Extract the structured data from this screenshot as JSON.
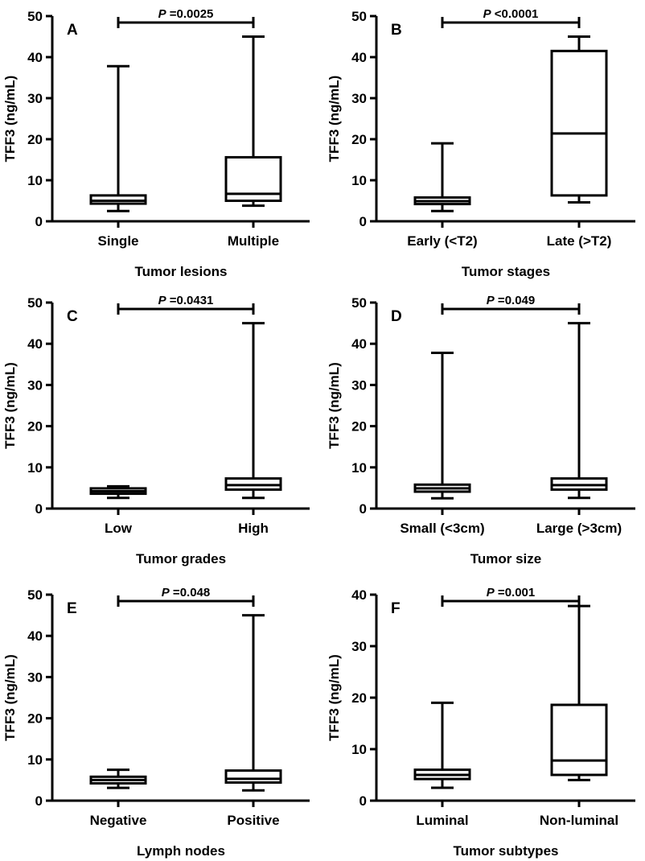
{
  "chart_data": [
    {
      "panel": "A",
      "type": "box",
      "ylabel": "TFF3 (ng/mL)",
      "xlabel": "Tumor lesions",
      "ylim": [
        0,
        50
      ],
      "yticks": [
        0,
        10,
        20,
        30,
        40,
        50
      ],
      "pvalue": "=0.0025",
      "categories": [
        "Single",
        "Multiple"
      ],
      "boxes": [
        {
          "min": 2.5,
          "q1": 4.3,
          "median": 5.0,
          "q3": 6.3,
          "max": 37.8
        },
        {
          "min": 3.8,
          "q1": 5.0,
          "median": 6.7,
          "q3": 15.6,
          "max": 45.0
        }
      ]
    },
    {
      "panel": "B",
      "type": "box",
      "ylabel": "TFF3 (ng/mL)",
      "xlabel": "Tumor stages",
      "ylim": [
        0,
        50
      ],
      "yticks": [
        0,
        10,
        20,
        30,
        40,
        50
      ],
      "pvalue": "<0.0001",
      "categories": [
        "Early (<T2)",
        "Late (>T2)"
      ],
      "boxes": [
        {
          "min": 2.5,
          "q1": 4.2,
          "median": 4.9,
          "q3": 5.8,
          "max": 19.0
        },
        {
          "min": 4.6,
          "q1": 6.3,
          "median": 21.4,
          "q3": 41.5,
          "max": 45.0
        }
      ]
    },
    {
      "panel": "C",
      "type": "box",
      "ylabel": "TFF3 (ng/mL)",
      "xlabel": "Tumor grades",
      "ylim": [
        0,
        50
      ],
      "yticks": [
        0,
        10,
        20,
        30,
        40,
        50
      ],
      "pvalue": "=0.0431",
      "categories": [
        "Low",
        "High"
      ],
      "boxes": [
        {
          "min": 2.6,
          "q1": 3.6,
          "median": 4.2,
          "q3": 4.9,
          "max": 5.4
        },
        {
          "min": 2.6,
          "q1": 4.6,
          "median": 5.7,
          "q3": 7.3,
          "max": 45.0
        }
      ]
    },
    {
      "panel": "D",
      "type": "box",
      "ylabel": "TFF3 (ng/mL)",
      "xlabel": "Tumor size",
      "ylim": [
        0,
        50
      ],
      "yticks": [
        0,
        10,
        20,
        30,
        40,
        50
      ],
      "pvalue": "=0.049",
      "categories": [
        "Small (<3cm)",
        "Large (>3cm)"
      ],
      "boxes": [
        {
          "min": 2.5,
          "q1": 4.1,
          "median": 4.9,
          "q3": 5.8,
          "max": 37.8
        },
        {
          "min": 2.6,
          "q1": 4.6,
          "median": 5.7,
          "q3": 7.3,
          "max": 45.0
        }
      ]
    },
    {
      "panel": "E",
      "type": "box",
      "ylabel": "TFF3 (ng/mL)",
      "xlabel": "Lymph nodes",
      "ylim": [
        0,
        50
      ],
      "yticks": [
        0,
        10,
        20,
        30,
        40,
        50
      ],
      "pvalue": "=0.048",
      "categories": [
        "Negative",
        "Positive"
      ],
      "boxes": [
        {
          "min": 3.1,
          "q1": 4.2,
          "median": 5.0,
          "q3": 5.8,
          "max": 7.5
        },
        {
          "min": 2.5,
          "q1": 4.4,
          "median": 5.3,
          "q3": 7.3,
          "max": 45.0
        }
      ]
    },
    {
      "panel": "F",
      "type": "box",
      "ylabel": "TFF3 (ng/mL)",
      "xlabel": "Tumor subtypes",
      "ylim": [
        0,
        40
      ],
      "yticks": [
        0,
        10,
        20,
        30,
        40
      ],
      "pvalue": "=0.001",
      "categories": [
        "Luminal",
        "Non-luminal"
      ],
      "boxes": [
        {
          "min": 2.5,
          "q1": 4.2,
          "median": 5.0,
          "q3": 6.0,
          "max": 19.0
        },
        {
          "min": 4.0,
          "q1": 5.0,
          "median": 7.8,
          "q3": 18.6,
          "max": 37.8
        }
      ]
    }
  ],
  "pvalue_prefix": "P"
}
